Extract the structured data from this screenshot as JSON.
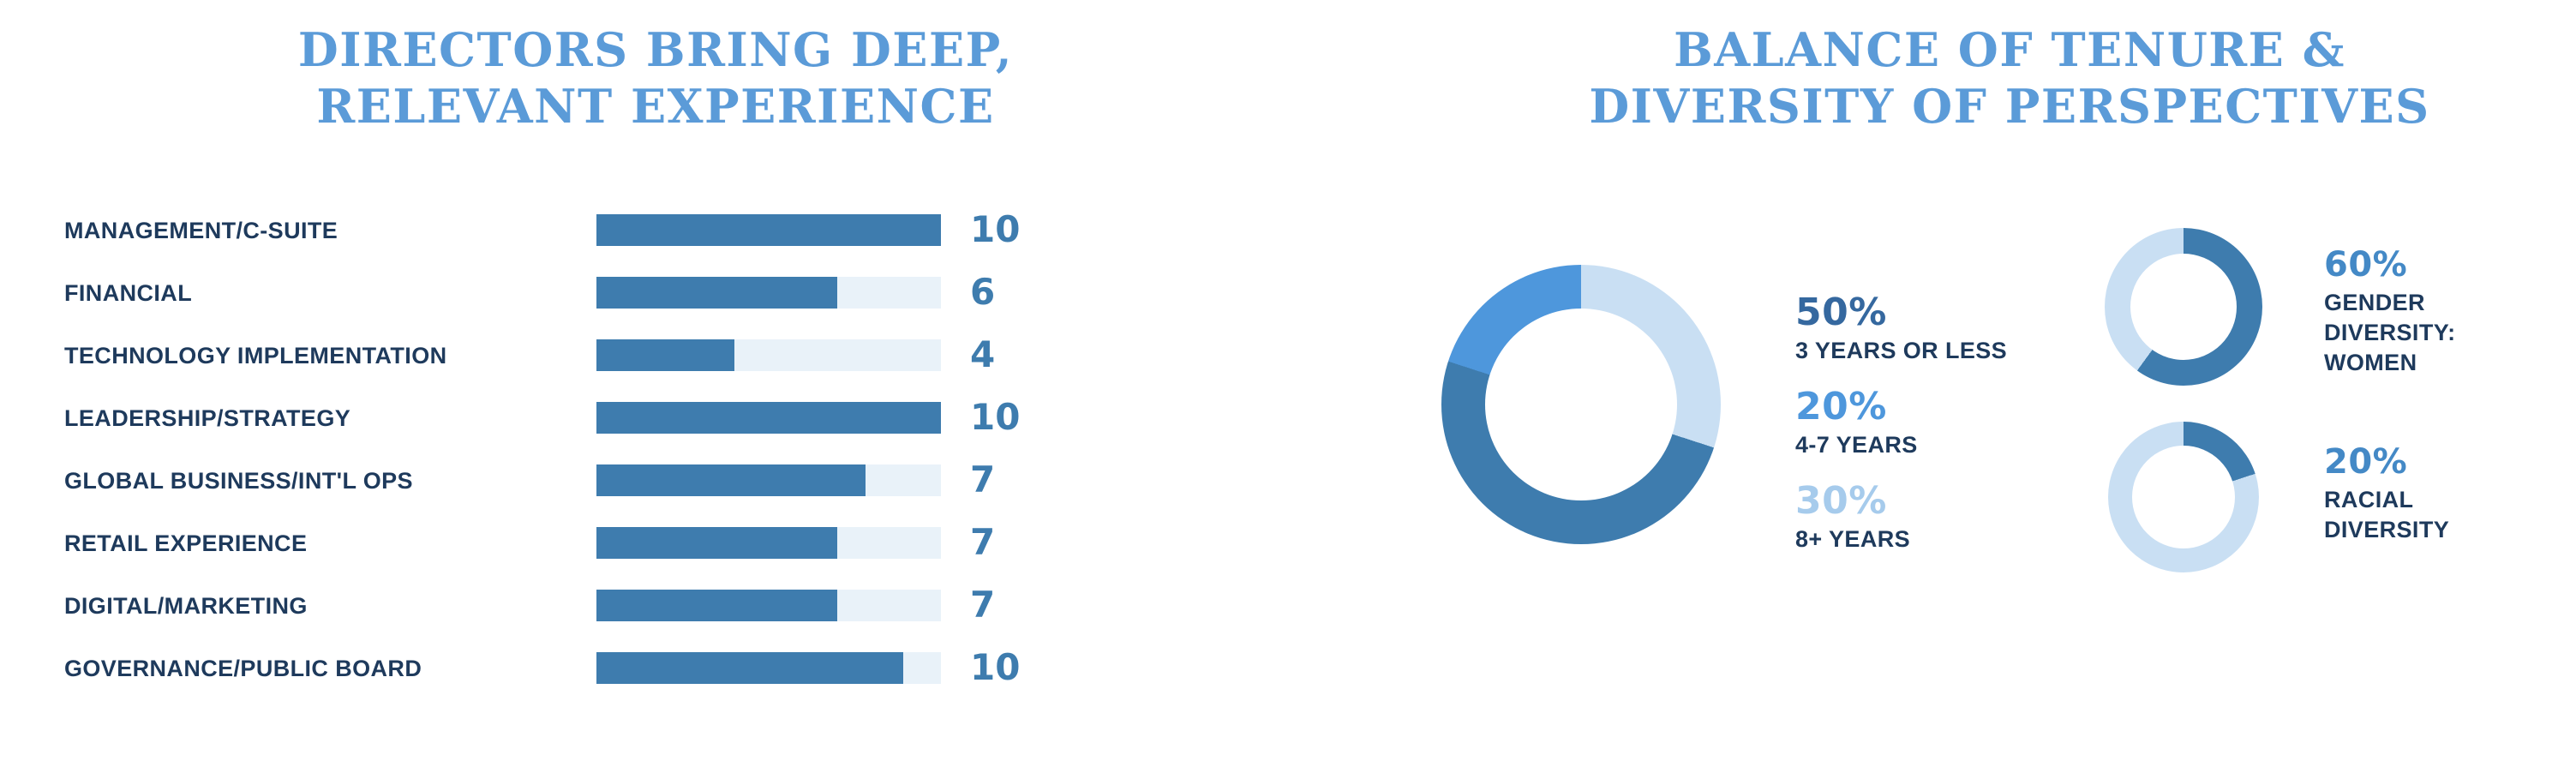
{
  "colors": {
    "title_blue": "#5B9BD8",
    "steel_blue": "#3E7CAE",
    "bright_blue": "#4E97DC",
    "pale_blue": "#C9DFF3",
    "bar_track": "#E9F2F9",
    "navy_text": "#1E3A5C",
    "pct_50": "#35689F",
    "pct_20": "#4E97DC",
    "pct_30": "#A6CBEC",
    "pct_small_donut": "#4489C6"
  },
  "left": {
    "title_line1": "DIRECTORS BRING DEEP,",
    "title_line2": "RELEVANT EXPERIENCE",
    "rows": [
      {
        "label": "MANAGEMENT/C-SUITE",
        "value": "10",
        "fill": 100
      },
      {
        "label": "FINANCIAL",
        "value": "6",
        "fill": 70
      },
      {
        "label": "TECHNOLOGY IMPLEMENTATION",
        "value": "4",
        "fill": 40
      },
      {
        "label": "LEADERSHIP/STRATEGY",
        "value": "10",
        "fill": 100
      },
      {
        "label": "GLOBAL BUSINESS/INT'L OPS",
        "value": "7",
        "fill": 78
      },
      {
        "label": "RETAIL EXPERIENCE",
        "value": "7",
        "fill": 70
      },
      {
        "label": "DIGITAL/MARKETING",
        "value": "7",
        "fill": 70
      },
      {
        "label": "GOVERNANCE/PUBLIC BOARD",
        "value": "10",
        "fill": 89
      }
    ]
  },
  "right": {
    "title_line1": "BALANCE OF TENURE &",
    "title_line2": "DIVERSITY OF PERSPECTIVES",
    "tenure_legend": [
      {
        "pct": "50%",
        "label": "3 YEARS OR LESS",
        "color": "#35689F"
      },
      {
        "pct": "20%",
        "label": "4-7 YEARS",
        "color": "#4E97DC"
      },
      {
        "pct": "30%",
        "label": "8+ YEARS",
        "color": "#A6CBEC"
      }
    ],
    "gender": {
      "pct": "60%",
      "pct_color": "#4489C6",
      "label_line1": "GENDER",
      "label_line2": "DIVERSITY:",
      "label_line3": "WOMEN"
    },
    "racial": {
      "pct": "20%",
      "pct_color": "#4489C6",
      "label_line1": "RACIAL",
      "label_line2": "DIVERSITY"
    }
  },
  "donuts": {
    "tenure": {
      "segments": [
        {
          "name": "8+ YEARS",
          "pct": 30,
          "color": "#C9DFF3"
        },
        {
          "name": "3 YEARS OR LESS",
          "pct": 50,
          "color": "#3E7CAE"
        },
        {
          "name": "4-7 YEARS",
          "pct": 20,
          "color": "#4E97DC"
        }
      ]
    },
    "gender": {
      "segments": [
        {
          "name": "WOMEN",
          "pct": 60,
          "color": "#3E7CAE"
        },
        {
          "name": "REMAINDER",
          "pct": 40,
          "color": "#C9DFF3"
        }
      ]
    },
    "racial": {
      "segments": [
        {
          "name": "RACIALLY DIVERSE",
          "pct": 20,
          "color": "#3E7CAE"
        },
        {
          "name": "REMAINDER",
          "pct": 80,
          "color": "#C9DFF3"
        }
      ]
    }
  },
  "chart_data": [
    {
      "type": "bar",
      "orientation": "horizontal",
      "title": "DIRECTORS BRING DEEP, RELEVANT EXPERIENCE",
      "categories": [
        "MANAGEMENT/C-SUITE",
        "FINANCIAL",
        "TECHNOLOGY IMPLEMENTATION",
        "LEADERSHIP/STRATEGY",
        "GLOBAL BUSINESS/INT'L OPS",
        "RETAIL EXPERIENCE",
        "DIGITAL/MARKETING",
        "GOVERNANCE/PUBLIC BOARD"
      ],
      "values": [
        10,
        6,
        4,
        10,
        7,
        7,
        7,
        10
      ],
      "xlim": [
        0,
        10
      ],
      "xlabel": "",
      "ylabel": "",
      "grid": false,
      "bar_color": "#3E7CAE",
      "track_color": "#E9F2F9",
      "value_labels_shown": true,
      "value_label_color": "#3E7CAE"
    },
    {
      "type": "pie",
      "subtype": "donut",
      "name": "board-tenure",
      "title": "BALANCE OF TENURE & DIVERSITY OF PERSPECTIVES",
      "labels": [
        "3 YEARS OR LESS",
        "4-7 YEARS",
        "8+ YEARS"
      ],
      "values": [
        50,
        20,
        30
      ],
      "colors": [
        "#3E7CAE",
        "#4E97DC",
        "#C9DFF3"
      ],
      "start_angle": "top",
      "clockwise_segment_order": [
        "8+ YEARS",
        "3 YEARS OR LESS",
        "4-7 YEARS"
      ],
      "legend_position": "right"
    },
    {
      "type": "pie",
      "subtype": "donut",
      "name": "gender-diversity",
      "labels": [
        "GENDER DIVERSITY: WOMEN",
        "REMAINDER"
      ],
      "values": [
        60,
        40
      ],
      "colors": [
        "#3E7CAE",
        "#C9DFF3"
      ],
      "start_angle": "top",
      "legend_position": "right"
    },
    {
      "type": "pie",
      "subtype": "donut",
      "name": "racial-diversity",
      "labels": [
        "RACIAL DIVERSITY",
        "REMAINDER"
      ],
      "values": [
        20,
        80
      ],
      "colors": [
        "#3E7CAE",
        "#C9DFF3"
      ],
      "start_angle": "top",
      "legend_position": "right"
    }
  ]
}
